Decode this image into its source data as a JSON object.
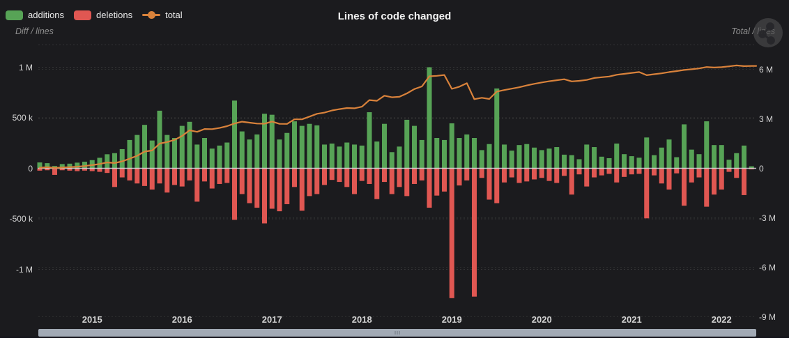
{
  "header": {
    "title": "Lines of code changed"
  },
  "legend": {
    "items": [
      {
        "label": "additions",
        "color": "#57a356",
        "marker": "rect"
      },
      {
        "label": "deletions",
        "color": "#e05752",
        "marker": "rect"
      },
      {
        "label": "total",
        "color": "#d9823b",
        "marker": "line-dot"
      }
    ]
  },
  "axes": {
    "left": {
      "title": "Diff / lines",
      "ticks": [
        {
          "label": "1 M",
          "value": 1000
        },
        {
          "label": "500 k",
          "value": 500
        },
        {
          "label": "0",
          "value": 0
        },
        {
          "label": "-500 k",
          "value": -500
        },
        {
          "label": "-1 M",
          "value": -1000
        }
      ]
    },
    "right": {
      "title": "Total / lines",
      "ticks": [
        {
          "label": "6 M",
          "value": 6000
        },
        {
          "label": "3 M",
          "value": 3000
        },
        {
          "label": "0",
          "value": 0
        },
        {
          "label": "-3 M",
          "value": -3000
        },
        {
          "label": "-6 M",
          "value": -6000
        },
        {
          "label": "-9 M",
          "value": -9000
        }
      ]
    },
    "x": {
      "years": [
        "2015",
        "2016",
        "2017",
        "2018",
        "2019",
        "2020",
        "2021",
        "2022"
      ]
    }
  },
  "chart_data": {
    "type": "bar",
    "title": "Lines of code changed",
    "unit": "thousands of lines of code per month",
    "start_month": "2014-06",
    "months_count": 96,
    "left_ylim_k": [
      -1000,
      1000
    ],
    "right_ylim_k": [
      -9000,
      6000
    ],
    "grid": "dashed horizontal",
    "legend_position": "top-left",
    "series": [
      {
        "name": "additions",
        "type": "bar",
        "color": "#57a356",
        "values": [
          58,
          51,
          23,
          42,
          46,
          56,
          65,
          81,
          104,
          139,
          150,
          190,
          280,
          330,
          430,
          275,
          570,
          330,
          300,
          420,
          460,
          235,
          300,
          195,
          225,
          255,
          670,
          365,
          285,
          335,
          540,
          530,
          285,
          350,
          465,
          420,
          440,
          425,
          235,
          245,
          215,
          255,
          235,
          225,
          555,
          265,
          440,
          160,
          215,
          480,
          420,
          280,
          1000,
          300,
          280,
          445,
          300,
          335,
          300,
          180,
          240,
          790,
          235,
          175,
          230,
          240,
          205,
          180,
          195,
          210,
          135,
          130,
          90,
          235,
          210,
          115,
          100,
          245,
          140,
          120,
          105,
          305,
          130,
          205,
          285,
          110,
          435,
          185,
          140,
          465,
          230,
          230,
          85,
          150,
          225,
          20
        ]
      },
      {
        "name": "deletions",
        "type": "bar",
        "color": "#e05752",
        "values": [
          -23,
          -19,
          -65,
          -19,
          -23,
          -28,
          -23,
          -28,
          -35,
          -46,
          -185,
          -90,
          -120,
          -150,
          -175,
          -210,
          -150,
          -240,
          -165,
          -180,
          -120,
          -330,
          -130,
          -200,
          -155,
          -145,
          -510,
          -255,
          -345,
          -390,
          -545,
          -400,
          -425,
          -355,
          -185,
          -420,
          -275,
          -255,
          -165,
          -115,
          -135,
          -185,
          -255,
          -125,
          -155,
          -305,
          -135,
          -255,
          -185,
          -275,
          -155,
          -120,
          -390,
          -270,
          -230,
          -1285,
          -170,
          -120,
          -1270,
          -95,
          -310,
          -345,
          -140,
          -90,
          -145,
          -130,
          -110,
          -95,
          -125,
          -145,
          -75,
          -260,
          -60,
          -180,
          -90,
          -70,
          -55,
          -140,
          -85,
          -60,
          -55,
          -495,
          -70,
          -150,
          -210,
          -50,
          -370,
          -140,
          -90,
          -380,
          -260,
          -210,
          -35,
          -95,
          -265,
          -10
        ]
      },
      {
        "name": "total",
        "type": "line",
        "color": "#d9823b",
        "derivation": "cumulative sum of additions + deletions, plotted on right axis"
      }
    ]
  },
  "toolbar": {
    "corner_icon": "share-icon"
  },
  "scrollbar": {
    "kind": "horizontal zoom range",
    "range": "full width selected"
  }
}
